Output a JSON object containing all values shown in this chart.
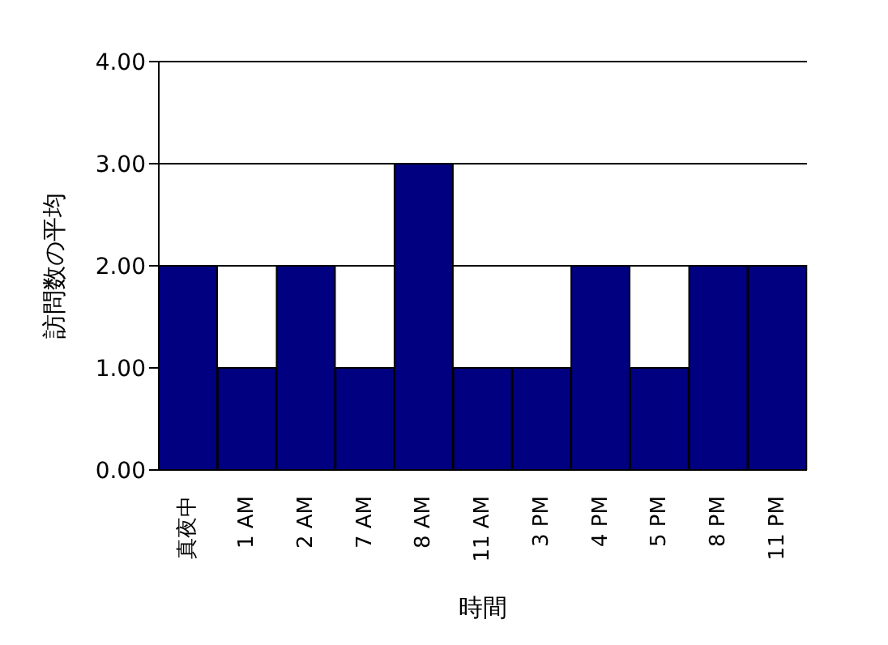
{
  "chart_data": {
    "type": "bar",
    "xlabel": "時間",
    "ylabel": "訪問数の平均",
    "categories": [
      "真夜中",
      "1 AM",
      "2 AM",
      "7 AM",
      "8 AM",
      "11 AM",
      "3 PM",
      "4 PM",
      "5 PM",
      "8 PM",
      "11 PM"
    ],
    "values": [
      2,
      1,
      2,
      1,
      3,
      1,
      1,
      2,
      1,
      2,
      2
    ],
    "color": "#000080",
    "ylim": [
      0,
      4
    ],
    "yticks": [
      {
        "value": 0,
        "label": "0.00"
      },
      {
        "value": 1,
        "label": "1.00"
      },
      {
        "value": 2,
        "label": "2.00"
      },
      {
        "value": 3,
        "label": "3.00"
      },
      {
        "value": 4,
        "label": "4.00"
      }
    ],
    "grid": "y"
  }
}
